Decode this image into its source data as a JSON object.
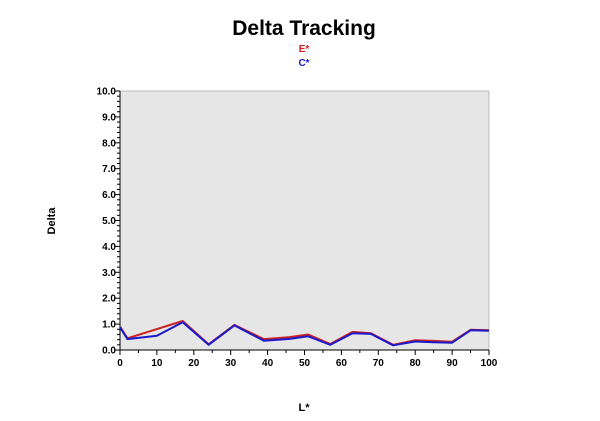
{
  "chart_data": {
    "type": "line",
    "title": "Delta Tracking",
    "xlabel": "L*",
    "ylabel": "Delta",
    "xlim": [
      0,
      100
    ],
    "ylim": [
      0,
      10
    ],
    "x_ticks": [
      "0",
      "10",
      "20",
      "30",
      "40",
      "50",
      "60",
      "70",
      "80",
      "90",
      "100"
    ],
    "y_ticks": [
      "0.0",
      "1.0",
      "2.0",
      "3.0",
      "4.0",
      "5.0",
      "6.0",
      "7.0",
      "8.0",
      "9.0",
      "10.0"
    ],
    "grid": false,
    "legend_position": "top-center",
    "background_color": "#e6e6e6",
    "series": [
      {
        "name": "E*",
        "color": "#cc2222",
        "x": [
          0,
          2,
          17,
          24,
          31,
          39,
          46,
          51,
          57,
          63,
          68,
          74,
          80,
          85,
          90,
          95,
          100
        ],
        "y": [
          0.9,
          0.45,
          1.12,
          0.22,
          0.97,
          0.42,
          0.5,
          0.6,
          0.23,
          0.7,
          0.65,
          0.2,
          0.38,
          0.35,
          0.32,
          0.78,
          0.76
        ]
      },
      {
        "name": "C*",
        "color": "#1a1acc",
        "x": [
          0,
          2,
          10,
          17,
          24,
          31,
          39,
          46,
          51,
          57,
          63,
          68,
          74,
          80,
          85,
          90,
          95,
          100
        ],
        "y": [
          0.88,
          0.42,
          0.55,
          1.07,
          0.2,
          0.95,
          0.36,
          0.43,
          0.53,
          0.2,
          0.65,
          0.62,
          0.18,
          0.33,
          0.3,
          0.28,
          0.76,
          0.74
        ]
      }
    ]
  }
}
